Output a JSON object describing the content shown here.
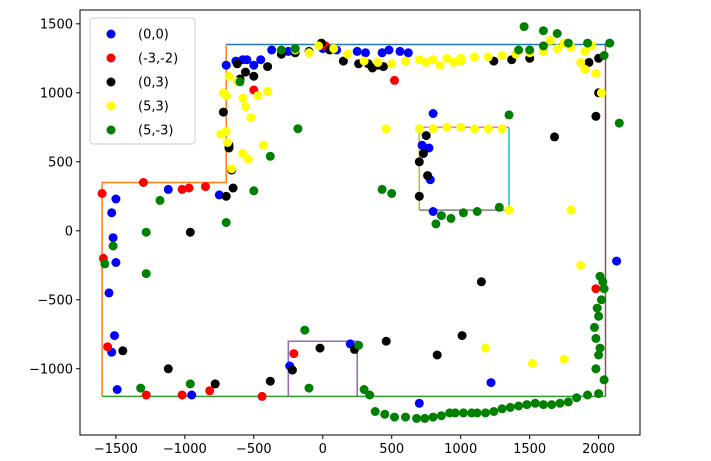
{
  "chart_data": {
    "type": "scatter",
    "title": "",
    "xlabel": "",
    "ylabel": "",
    "xlim": [
      -1760,
      2300
    ],
    "ylim": [
      -1480,
      1600
    ],
    "x_ticks": [
      -1500,
      -1000,
      -500,
      0,
      500,
      1000,
      1500,
      2000
    ],
    "x_tick_labels": [
      "−1500",
      "−1000",
      "−500",
      "0",
      "500",
      "1000",
      "1500",
      "2000"
    ],
    "y_ticks": [
      -1000,
      -500,
      0,
      500,
      1000,
      1500
    ],
    "y_tick_labels": [
      "−1000",
      "−500",
      "0",
      "500",
      "1000",
      "1500"
    ],
    "grid": false,
    "legend_position": "top-left",
    "series": [
      {
        "name": "(0,0)",
        "color": "#0000ff",
        "points": [
          [
            -1500,
            230
          ],
          [
            -1530,
            130
          ],
          [
            -1520,
            -50
          ],
          [
            -1500,
            -230
          ],
          [
            -1550,
            -450
          ],
          [
            -1510,
            -760
          ],
          [
            -1530,
            -880
          ],
          [
            -1490,
            -1150
          ],
          [
            -1120,
            300
          ],
          [
            -950,
            -1190
          ],
          [
            -750,
            260
          ],
          [
            -700,
            1200
          ],
          [
            -630,
            1230
          ],
          [
            -550,
            1240
          ],
          [
            -450,
            1240
          ],
          [
            -500,
            1200
          ],
          [
            -370,
            1310
          ],
          [
            -250,
            1300
          ],
          [
            0,
            1320
          ],
          [
            100,
            1310
          ],
          [
            250,
            1300
          ],
          [
            310,
            1290
          ],
          [
            430,
            1290
          ],
          [
            480,
            1310
          ],
          [
            560,
            1300
          ],
          [
            620,
            1290
          ],
          [
            -580,
            1240
          ],
          [
            800,
            850
          ],
          [
            770,
            600
          ],
          [
            780,
            370
          ],
          [
            720,
            620
          ],
          [
            800,
            140
          ],
          [
            200,
            -820
          ],
          [
            -240,
            -980
          ],
          [
            1220,
            -1100
          ],
          [
            700,
            -1250
          ],
          [
            2130,
            -220
          ]
        ]
      },
      {
        "name": "(-3,-2)",
        "color": "#ff0000",
        "points": [
          [
            -1600,
            270
          ],
          [
            -1590,
            -200
          ],
          [
            -1560,
            -840
          ],
          [
            -1300,
            350
          ],
          [
            -1020,
            300
          ],
          [
            -970,
            310
          ],
          [
            -850,
            320
          ],
          [
            -500,
            1020
          ],
          [
            20,
            1340
          ],
          [
            520,
            1090
          ],
          [
            -1280,
            -1190
          ],
          [
            -1020,
            -1190
          ],
          [
            -820,
            -1160
          ],
          [
            -440,
            -1200
          ],
          [
            -210,
            -890
          ],
          [
            1980,
            -420
          ]
        ]
      },
      {
        "name": "(0,3)",
        "color": "#000000",
        "points": [
          [
            -1450,
            -870
          ],
          [
            -960,
            -10
          ],
          [
            -1120,
            -1000
          ],
          [
            -780,
            -1110
          ],
          [
            -380,
            -1090
          ],
          [
            -220,
            -1010
          ],
          [
            -20,
            -850
          ],
          [
            230,
            -860
          ],
          [
            460,
            -800
          ],
          [
            830,
            -900
          ],
          [
            1010,
            -760
          ],
          [
            1150,
            -370
          ],
          [
            1680,
            680
          ],
          [
            2000,
            1000
          ],
          [
            1980,
            830
          ],
          [
            -720,
            860
          ],
          [
            -680,
            620
          ],
          [
            -660,
            440
          ],
          [
            -650,
            310
          ],
          [
            -700,
            250
          ],
          [
            -680,
            600
          ],
          [
            -600,
            1100
          ],
          [
            -500,
            1120
          ],
          [
            -400,
            1190
          ],
          [
            -300,
            1280
          ],
          [
            -200,
            1290
          ],
          [
            -100,
            1300
          ],
          [
            -10,
            1360
          ],
          [
            50,
            1310
          ],
          [
            150,
            1230
          ],
          [
            260,
            1210
          ],
          [
            330,
            1210
          ],
          [
            360,
            1180
          ],
          [
            400,
            1200
          ],
          [
            440,
            1190
          ],
          [
            750,
            690
          ],
          [
            700,
            500
          ],
          [
            760,
            400
          ],
          [
            700,
            250
          ],
          [
            730,
            560
          ],
          [
            1240,
            1230
          ],
          [
            1370,
            1240
          ],
          [
            1500,
            1250
          ],
          [
            2000,
            1250
          ],
          [
            1930,
            1220
          ],
          [
            -620,
            1210
          ],
          [
            -560,
            1150
          ]
        ]
      },
      {
        "name": "(5,3)",
        "color": "#ffff00",
        "points": [
          [
            -720,
            1000
          ],
          [
            -700,
            720
          ],
          [
            -660,
            450
          ],
          [
            -690,
            640
          ],
          [
            -540,
            520
          ],
          [
            -430,
            620
          ],
          [
            -400,
            1010
          ],
          [
            -560,
            900
          ],
          [
            -580,
            960
          ],
          [
            -700,
            980
          ],
          [
            -740,
            700
          ],
          [
            -580,
            560
          ],
          [
            -520,
            820
          ],
          [
            -470,
            980
          ],
          [
            -200,
            1310
          ],
          [
            -100,
            1290
          ],
          [
            -30,
            1340
          ],
          [
            80,
            1320
          ],
          [
            180,
            1280
          ],
          [
            300,
            1230
          ],
          [
            400,
            1220
          ],
          [
            500,
            1210
          ],
          [
            600,
            1230
          ],
          [
            700,
            1240
          ],
          [
            800,
            1240
          ],
          [
            900,
            1250
          ],
          [
            1000,
            1250
          ],
          [
            1100,
            1260
          ],
          [
            1200,
            1260
          ],
          [
            1300,
            1270
          ],
          [
            1400,
            1280
          ],
          [
            1500,
            1290
          ],
          [
            1600,
            1300
          ],
          [
            1700,
            1320
          ],
          [
            1800,
            1330
          ],
          [
            1900,
            1300
          ],
          [
            1980,
            1140
          ],
          [
            2020,
            1000
          ],
          [
            460,
            740
          ],
          [
            700,
            740
          ],
          [
            800,
            740
          ],
          [
            900,
            750
          ],
          [
            1000,
            750
          ],
          [
            1100,
            740
          ],
          [
            1200,
            740
          ],
          [
            1300,
            740
          ],
          [
            1350,
            150
          ],
          [
            1800,
            150
          ],
          [
            1870,
            -250
          ],
          [
            1750,
            -930
          ],
          [
            1180,
            -850
          ],
          [
            1520,
            -960
          ],
          [
            1900,
            1170
          ],
          [
            1870,
            1220
          ],
          [
            1950,
            1340
          ],
          [
            1750,
            1360
          ],
          [
            1650,
            1380
          ],
          [
            1000,
            1230
          ],
          [
            950,
            1220
          ],
          [
            850,
            1200
          ],
          [
            750,
            1220
          ],
          [
            -680,
            1120
          ],
          [
            -620,
            1080
          ]
        ]
      },
      {
        "name": "(5,-3)",
        "color": "#008000",
        "points": [
          [
            -1580,
            -240
          ],
          [
            -1520,
            -110
          ],
          [
            -1320,
            -1140
          ],
          [
            -1280,
            -310
          ],
          [
            -1280,
            -10
          ],
          [
            -1180,
            220
          ],
          [
            -960,
            -1110
          ],
          [
            -700,
            60
          ],
          [
            -500,
            290
          ],
          [
            -380,
            540
          ],
          [
            -180,
            740
          ],
          [
            -100,
            -1140
          ],
          [
            -130,
            -720
          ],
          [
            260,
            -830
          ],
          [
            300,
            -1150
          ],
          [
            340,
            -1190
          ],
          [
            380,
            -1310
          ],
          [
            450,
            -1330
          ],
          [
            520,
            -1350
          ],
          [
            600,
            -1350
          ],
          [
            680,
            -1360
          ],
          [
            740,
            -1360
          ],
          [
            800,
            -1350
          ],
          [
            860,
            -1340
          ],
          [
            920,
            -1320
          ],
          [
            960,
            -1320
          ],
          [
            1020,
            -1320
          ],
          [
            1080,
            -1320
          ],
          [
            1120,
            -1320
          ],
          [
            1180,
            -1320
          ],
          [
            1240,
            -1310
          ],
          [
            1300,
            -1290
          ],
          [
            1360,
            -1280
          ],
          [
            1420,
            -1270
          ],
          [
            1480,
            -1260
          ],
          [
            1540,
            -1250
          ],
          [
            1600,
            -1260
          ],
          [
            1660,
            -1260
          ],
          [
            1720,
            -1250
          ],
          [
            1780,
            -1240
          ],
          [
            1840,
            -1210
          ],
          [
            1920,
            -1190
          ],
          [
            2000,
            -1180
          ],
          [
            2040,
            -1080
          ],
          [
            1980,
            -1000
          ],
          [
            2000,
            -900
          ],
          [
            2010,
            -850
          ],
          [
            1980,
            -780
          ],
          [
            1970,
            -700
          ],
          [
            2000,
            -620
          ],
          [
            1990,
            -560
          ],
          [
            2020,
            -500
          ],
          [
            2040,
            -420
          ],
          [
            2030,
            -370
          ],
          [
            2010,
            -330
          ],
          [
            430,
            300
          ],
          [
            500,
            270
          ],
          [
            820,
            50
          ],
          [
            860,
            110
          ],
          [
            930,
            90
          ],
          [
            1120,
            140
          ],
          [
            1020,
            130
          ],
          [
            1280,
            170
          ],
          [
            1350,
            840
          ],
          [
            1460,
            1480
          ],
          [
            1600,
            1450
          ],
          [
            1700,
            1430
          ],
          [
            1780,
            1360
          ],
          [
            1920,
            1360
          ],
          [
            2080,
            1360
          ],
          [
            2150,
            780
          ],
          [
            1600,
            1340
          ],
          [
            1500,
            1310
          ],
          [
            1420,
            1310
          ],
          [
            -200,
            1320
          ],
          [
            -300,
            1310
          ],
          [
            -600,
            1080
          ],
          [
            2040,
            1270
          ]
        ]
      }
    ],
    "line_segments": [
      {
        "color": "#1f77b4",
        "points": [
          [
            -700,
            1350
          ],
          [
            2050,
            1350
          ]
        ]
      },
      {
        "color": "#ff7f0e",
        "points": [
          [
            -700,
            1350
          ],
          [
            -700,
            350
          ],
          [
            -1600,
            350
          ],
          [
            -1600,
            -1200
          ]
        ]
      },
      {
        "color": "#2ca02c",
        "points": [
          [
            -1600,
            -1200
          ],
          [
            2050,
            -1200
          ]
        ]
      },
      {
        "color": "#8c564b",
        "points": [
          [
            2050,
            -1200
          ],
          [
            2050,
            1350
          ]
        ]
      },
      {
        "color": "#9467bd",
        "points": [
          [
            -250,
            -1200
          ],
          [
            -250,
            -800
          ],
          [
            250,
            -800
          ],
          [
            250,
            -1200
          ]
        ]
      },
      {
        "color": "#e377c2",
        "points": [
          [
            700,
            750
          ],
          [
            1350,
            750
          ]
        ]
      },
      {
        "color": "#7f7f7f",
        "points": [
          [
            700,
            150
          ],
          [
            1350,
            150
          ]
        ]
      },
      {
        "color": "#17becf",
        "points": [
          [
            1350,
            750
          ],
          [
            1350,
            150
          ]
        ]
      },
      {
        "color": "#bcbd22",
        "points": [
          [
            700,
            750
          ],
          [
            700,
            150
          ]
        ]
      }
    ]
  }
}
